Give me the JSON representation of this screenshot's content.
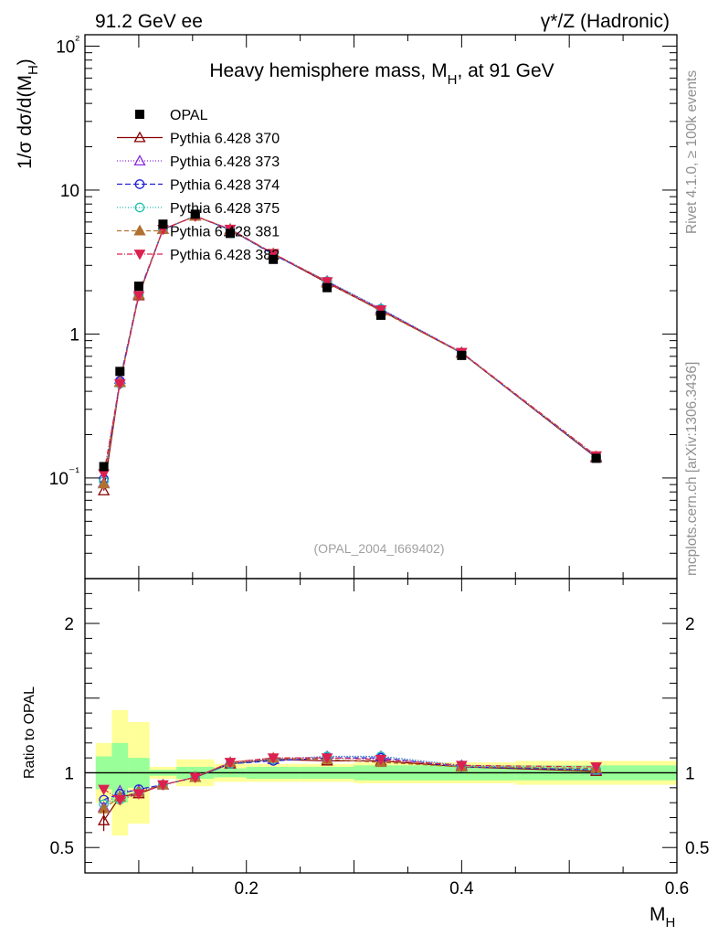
{
  "header": {
    "left": "91.2 GeV ee",
    "right": "γ*/Z (Hadronic)"
  },
  "side_text": {
    "rivet": "Rivet 4.1.0, ≥ 100k events",
    "mcplots": "mcplots.cern.ch [arXiv:1306.3436]"
  },
  "chart_data": {
    "type": "scatter",
    "title": "Heavy hemisphere mass, M_H, at 91 GeV",
    "xlabel": "M_H",
    "ylabel": "1/σ  dσ/d(M_H)",
    "ratio_ylabel": "Ratio to OPAL",
    "analysis_id": "(OPAL_2004_I669402)",
    "xlim": [
      0.05,
      0.6
    ],
    "ylim": [
      0.02,
      120
    ],
    "ratio_ylim": [
      0.33,
      2.3
    ],
    "yscale": "log",
    "legend_placement": "top-left",
    "x_ticks": [
      "0.2",
      "0.4",
      "0.6"
    ],
    "y_ticks": [
      "10⁻¹",
      "1",
      "10",
      "10²"
    ],
    "ratio_ticks": [
      "0.5",
      "1",
      "2"
    ],
    "bin_edges": [
      0.06,
      0.075,
      0.09,
      0.11,
      0.135,
      0.17,
      0.2,
      0.25,
      0.3,
      0.35,
      0.45,
      0.6
    ],
    "x": [
      0.0675,
      0.0825,
      0.1,
      0.1225,
      0.1525,
      0.185,
      0.225,
      0.275,
      0.325,
      0.4,
      0.525
    ],
    "data": {
      "name": "OPAL",
      "values": [
        0.12,
        0.55,
        2.15,
        5.8,
        6.8,
        5.0,
        3.3,
        2.1,
        1.35,
        0.71,
        0.137
      ],
      "band_inner": [
        0.11,
        0.2,
        0.1,
        0.02,
        0.04,
        0.03,
        0.04,
        0.04,
        0.05,
        0.05,
        0.05
      ],
      "band_outer": [
        0.2,
        0.42,
        0.34,
        0.04,
        0.09,
        0.06,
        0.06,
        0.06,
        0.07,
        0.07,
        0.08
      ]
    },
    "series": [
      {
        "name": "Pythia 6.428 370",
        "color": "#8b0000",
        "dash": "",
        "marker": "tri-up-open",
        "ratio": [
          0.68,
          0.84,
          0.86,
          0.92,
          0.97,
          1.06,
          1.09,
          1.08,
          1.08,
          1.04,
          1.01
        ]
      },
      {
        "name": "Pythia 6.428 373",
        "color": "#8a2be2",
        "dash": "1,2",
        "marker": "tri-up-open",
        "ratio": [
          0.77,
          0.88,
          0.88,
          0.92,
          0.97,
          1.07,
          1.09,
          1.11,
          1.11,
          1.05,
          1.02
        ]
      },
      {
        "name": "Pythia 6.428 374",
        "color": "#1f1fd6",
        "dash": "6,3",
        "marker": "circle-open",
        "ratio": [
          0.82,
          0.86,
          0.89,
          0.92,
          0.97,
          1.06,
          1.08,
          1.1,
          1.1,
          1.04,
          1.02
        ]
      },
      {
        "name": "Pythia 6.428 375",
        "color": "#20c0b0",
        "dash": "1,2",
        "marker": "circle-open",
        "ratio": [
          0.79,
          0.82,
          0.87,
          0.92,
          0.97,
          1.06,
          1.09,
          1.11,
          1.11,
          1.05,
          1.02
        ]
      },
      {
        "name": "Pythia 6.428 381",
        "color": "#b07030",
        "dash": "5,3",
        "marker": "tri-up-filled",
        "ratio": [
          0.76,
          0.84,
          0.87,
          0.92,
          0.97,
          1.07,
          1.1,
          1.09,
          1.07,
          1.04,
          1.03
        ]
      },
      {
        "name": "Pythia 6.428 382",
        "color": "#dc2050",
        "dash": "6,2,1,2",
        "marker": "tri-down-filled",
        "ratio": [
          0.89,
          0.82,
          0.86,
          0.92,
          0.97,
          1.07,
          1.1,
          1.1,
          1.09,
          1.05,
          1.04
        ]
      }
    ]
  }
}
